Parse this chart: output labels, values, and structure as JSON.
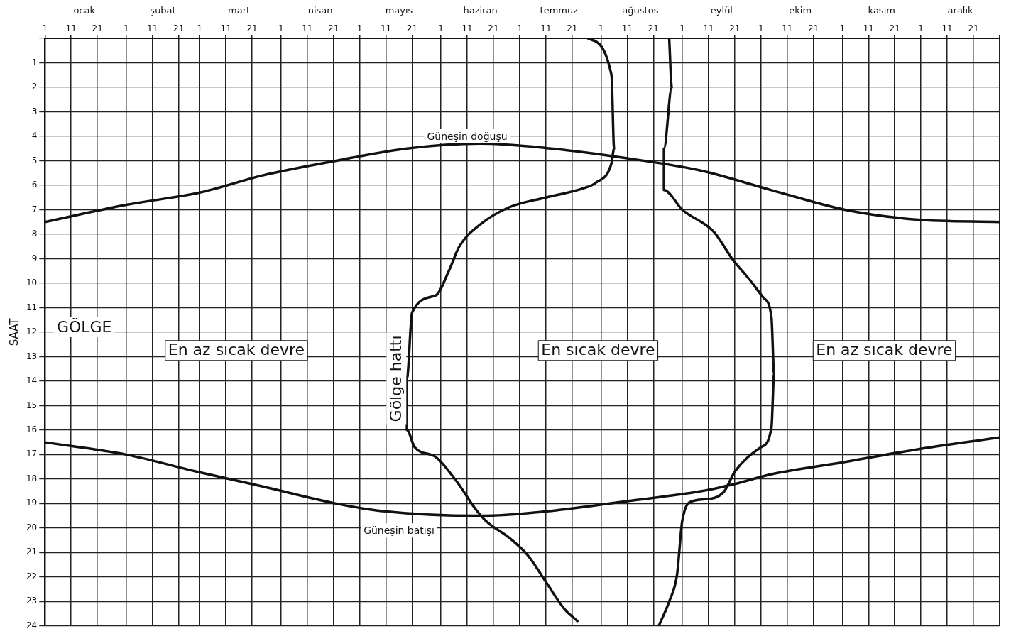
{
  "chart_data": {
    "type": "line",
    "ylabel": "SAAT",
    "xlim": [
      "--01-01",
      "--12-31"
    ],
    "xticks": [
      {
        "value": "--01-01",
        "label": "1"
      },
      {
        "value": "--01-11",
        "label": "11"
      },
      {
        "value": "--01-21",
        "label": "21"
      },
      {
        "value": "--02-01",
        "label": "1"
      },
      {
        "value": "--02-11",
        "label": "11"
      },
      {
        "value": "--02-21",
        "label": "21"
      },
      {
        "value": "--03-01",
        "label": "1"
      },
      {
        "value": "--03-11",
        "label": "11"
      },
      {
        "value": "--03-21",
        "label": "21"
      },
      {
        "value": "--04-01",
        "label": "1"
      },
      {
        "value": "--04-11",
        "label": "11"
      },
      {
        "value": "--04-21",
        "label": "21"
      },
      {
        "value": "--05-01",
        "label": "1"
      },
      {
        "value": "--05-11",
        "label": "11"
      },
      {
        "value": "--05-21",
        "label": "21"
      },
      {
        "value": "--06-01",
        "label": "1"
      },
      {
        "value": "--06-11",
        "label": "11"
      },
      {
        "value": "--06-21",
        "label": "21"
      },
      {
        "value": "--07-01",
        "label": "1"
      },
      {
        "value": "--07-11",
        "label": "11"
      },
      {
        "value": "--07-21",
        "label": "21"
      },
      {
        "value": "--08-01",
        "label": "1"
      },
      {
        "value": "--08-11",
        "label": "11"
      },
      {
        "value": "--08-21",
        "label": "21"
      },
      {
        "value": "--09-01",
        "label": "1"
      },
      {
        "value": "--09-11",
        "label": "11"
      },
      {
        "value": "--09-21",
        "label": "21"
      },
      {
        "value": "--10-01",
        "label": "1"
      },
      {
        "value": "--10-11",
        "label": "11"
      },
      {
        "value": "--10-21",
        "label": "21"
      },
      {
        "value": "--11-01",
        "label": "1"
      },
      {
        "value": "--11-11",
        "label": "11"
      },
      {
        "value": "--11-21",
        "label": "21"
      },
      {
        "value": "--12-01",
        "label": "1"
      },
      {
        "value": "--12-11",
        "label": "11"
      },
      {
        "value": "--12-21",
        "label": "21"
      },
      {
        "value": "--12-31",
        "label": null
      }
    ],
    "x2lim": [
      "--01-01",
      "--12-31"
    ],
    "x2ticks": [
      {
        "value": "--01-16",
        "label": "ocak"
      },
      {
        "value": "--02-15",
        "label": "şubat"
      },
      {
        "value": "--03-16",
        "label": "mart"
      },
      {
        "value": "--04-16",
        "label": "nisan"
      },
      {
        "value": "--05-16",
        "label": "mayıs"
      },
      {
        "value": "--06-16",
        "label": "haziran"
      },
      {
        "value": "--07-16",
        "label": "temmuz"
      },
      {
        "value": "--08-16",
        "label": "ağustos"
      },
      {
        "value": "--09-16",
        "label": "eylül"
      },
      {
        "value": "--10-16",
        "label": "ekim"
      },
      {
        "value": "--11-16",
        "label": "kasım"
      },
      {
        "value": "--12-16",
        "label": "aralık"
      }
    ],
    "ylim": [
      24,
      0
    ],
    "yticks": [
      {
        "value": 0,
        "label": null
      },
      1,
      2,
      3,
      4,
      5,
      6,
      7,
      8,
      9,
      10,
      11,
      12,
      13,
      14,
      15,
      16,
      17,
      18,
      19,
      20,
      21,
      22,
      23,
      24
    ],
    "grid": true,
    "legend": false,
    "marker": "none",
    "line_style": "solid",
    "series": [
      {
        "color": "#111111",
        "x": [
          "--01-01",
          "--02-01",
          "--03-01",
          "--03-25",
          "--04-22",
          "--05-19",
          "--06-16",
          "--07-13",
          "--08-11",
          "--09-08",
          "--10-05",
          "--11-02",
          "--11-29",
          "--12-31"
        ],
        "values": [
          7.5,
          6.8,
          6.3,
          5.6,
          5,
          4.5,
          4.3,
          4.5,
          4.9,
          5.4,
          6.2,
          7,
          7.4,
          7.5
        ]
      },
      {
        "color": "#111111",
        "x": [
          "--01-01",
          "--02-01",
          "--02-28",
          "--03-25",
          "--04-22",
          "--05-09",
          "--06-16",
          "--07-13",
          "--08-11",
          "--09-08",
          "--09-21",
          "--10-05",
          "--11-02",
          "--11-29",
          "--12-31"
        ],
        "values": [
          16.5,
          17,
          17.7,
          18.3,
          19,
          19.3,
          19.5,
          19.3,
          18.9,
          18.5,
          18.2,
          17.8,
          17.3,
          16.8,
          16.3
        ]
      },
      {
        "color": "#111111",
        "x": [
          "--07-27",
          "--08-05",
          "--08-06",
          "--08-05",
          "--07-30",
          "--07-26",
          "--07-11",
          "--06-27",
          "--06-16",
          "--06-08",
          "--06-04",
          "--05-30",
          "--05-21",
          "--05-19",
          "--05-19",
          "--05-22",
          "--05-30",
          "--06-07",
          "--06-14",
          "--06-18",
          "--06-27",
          "--07-04",
          "--07-11",
          "--07-18",
          "--07-23"
        ],
        "values": [
          0,
          1.5,
          4.5,
          5.1,
          5.9,
          6.1,
          6.5,
          6.9,
          7.6,
          8.5,
          9.5,
          10.5,
          11.2,
          13.9,
          16,
          16.7,
          17.1,
          18.1,
          19.2,
          19.7,
          20.4,
          21.1,
          22.2,
          23.3,
          23.8
        ]
      },
      {
        "color": "#111111",
        "x": [
          "--08-27",
          "--08-28",
          "--08-25",
          "--08-25",
          "--09-01",
          "--09-13",
          "--09-20",
          "--09-27",
          "--10-02",
          "--10-05",
          "--10-06",
          "--10-05",
          "--10-01",
          "--09-21",
          "--09-17",
          "--09-12",
          "--09-05",
          "--09-01",
          "--08-30",
          "--08-27",
          "--08-23"
        ],
        "values": [
          0,
          2,
          4.5,
          6.2,
          7,
          7.9,
          9,
          9.9,
          10.6,
          11.4,
          13.7,
          15.9,
          16.7,
          17.7,
          18.5,
          18.8,
          18.9,
          19.7,
          21.9,
          23,
          24
        ]
      }
    ],
    "annotations": [
      "Güneşin doğuşu",
      "Güneşin batışı",
      "GÖLGE",
      "En az sıcak devre",
      "En sıcak devre",
      "En az sıcak devre",
      "Gölge hattı"
    ]
  }
}
